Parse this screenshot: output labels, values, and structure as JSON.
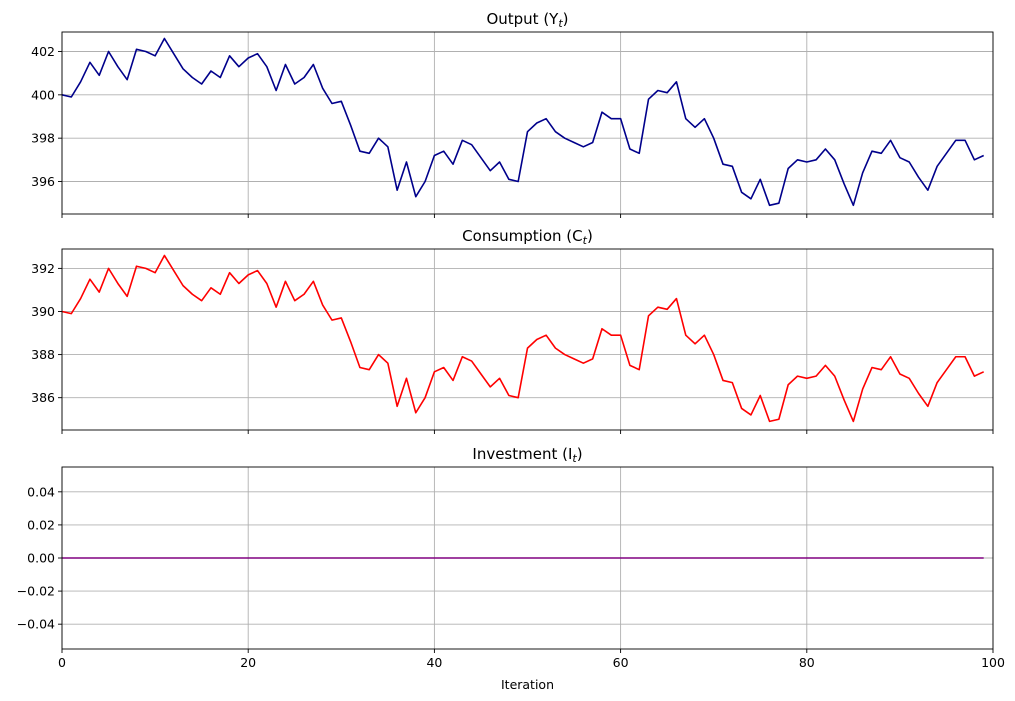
{
  "chart_data": [
    {
      "type": "line",
      "title": "Output (Y",
      "title_sub": "t",
      "xlim": [
        0,
        100
      ],
      "ylim": [
        394.5,
        402.9
      ],
      "xticks": [
        0,
        20,
        40,
        60,
        80,
        100
      ],
      "yticks": [
        396,
        398,
        400,
        402
      ],
      "ytick_decimals": 0,
      "show_xticklabels": false,
      "grid": true,
      "series": [
        {
          "color": "#00008b",
          "x": [
            0,
            1,
            2,
            3,
            4,
            5,
            6,
            7,
            8,
            9,
            10,
            11,
            12,
            13,
            14,
            15,
            16,
            17,
            18,
            19,
            20,
            21,
            22,
            23,
            24,
            25,
            26,
            27,
            28,
            29,
            30,
            31,
            32,
            33,
            34,
            35,
            36,
            37,
            38,
            39,
            40,
            41,
            42,
            43,
            44,
            45,
            46,
            47,
            48,
            49,
            50,
            51,
            52,
            53,
            54,
            55,
            56,
            57,
            58,
            59,
            60,
            61,
            62,
            63,
            64,
            65,
            66,
            67,
            68,
            69,
            70,
            71,
            72,
            73,
            74,
            75,
            76,
            77,
            78,
            79,
            80,
            81,
            82,
            83,
            84,
            85,
            86,
            87,
            88,
            89,
            90,
            91,
            92,
            93,
            94,
            95,
            96,
            97,
            98,
            99
          ],
          "values": [
            400.0,
            399.9,
            400.6,
            401.5,
            400.9,
            402.0,
            401.3,
            400.7,
            402.1,
            402.0,
            401.8,
            402.6,
            401.9,
            401.2,
            400.8,
            400.5,
            401.1,
            400.8,
            401.8,
            401.3,
            401.7,
            401.9,
            401.3,
            400.2,
            401.4,
            400.5,
            400.8,
            401.4,
            400.3,
            399.6,
            399.7,
            398.6,
            397.4,
            397.3,
            398.0,
            397.6,
            395.6,
            396.9,
            395.3,
            396.0,
            397.2,
            397.4,
            396.8,
            397.9,
            397.7,
            397.1,
            396.5,
            396.9,
            396.1,
            396.0,
            398.3,
            398.7,
            398.9,
            398.3,
            398.0,
            397.8,
            397.6,
            397.8,
            399.2,
            398.9,
            398.9,
            397.5,
            397.3,
            399.8,
            400.2,
            400.1,
            400.6,
            398.9,
            398.5,
            398.9,
            398.0,
            396.8,
            396.7,
            395.5,
            395.2,
            396.1,
            394.9,
            395.0,
            396.6,
            397.0,
            396.9,
            397.0,
            397.5,
            397.0,
            395.9,
            394.9,
            396.4,
            397.4,
            397.3,
            397.9,
            397.1,
            396.9,
            396.2,
            395.6,
            396.7,
            397.3,
            397.9,
            397.9,
            397.0,
            397.2
          ]
        }
      ]
    },
    {
      "type": "line",
      "title": "Consumption (C",
      "title_sub": "t",
      "xlim": [
        0,
        100
      ],
      "ylim": [
        384.5,
        392.9
      ],
      "xticks": [
        0,
        20,
        40,
        60,
        80,
        100
      ],
      "yticks": [
        386,
        388,
        390,
        392
      ],
      "ytick_decimals": 0,
      "show_xticklabels": false,
      "grid": true,
      "series": [
        {
          "color": "#ff0000",
          "x": [
            0,
            1,
            2,
            3,
            4,
            5,
            6,
            7,
            8,
            9,
            10,
            11,
            12,
            13,
            14,
            15,
            16,
            17,
            18,
            19,
            20,
            21,
            22,
            23,
            24,
            25,
            26,
            27,
            28,
            29,
            30,
            31,
            32,
            33,
            34,
            35,
            36,
            37,
            38,
            39,
            40,
            41,
            42,
            43,
            44,
            45,
            46,
            47,
            48,
            49,
            50,
            51,
            52,
            53,
            54,
            55,
            56,
            57,
            58,
            59,
            60,
            61,
            62,
            63,
            64,
            65,
            66,
            67,
            68,
            69,
            70,
            71,
            72,
            73,
            74,
            75,
            76,
            77,
            78,
            79,
            80,
            81,
            82,
            83,
            84,
            85,
            86,
            87,
            88,
            89,
            90,
            91,
            92,
            93,
            94,
            95,
            96,
            97,
            98,
            99
          ],
          "values": [
            390.0,
            389.9,
            390.6,
            391.5,
            390.9,
            392.0,
            391.3,
            390.7,
            392.1,
            392.0,
            391.8,
            392.6,
            391.9,
            391.2,
            390.8,
            390.5,
            391.1,
            390.8,
            391.8,
            391.3,
            391.7,
            391.9,
            391.3,
            390.2,
            391.4,
            390.5,
            390.8,
            391.4,
            390.3,
            389.6,
            389.7,
            388.6,
            387.4,
            387.3,
            388.0,
            387.6,
            385.6,
            386.9,
            385.3,
            386.0,
            387.2,
            387.4,
            386.8,
            387.9,
            387.7,
            387.1,
            386.5,
            386.9,
            386.1,
            386.0,
            388.3,
            388.7,
            388.9,
            388.3,
            388.0,
            387.8,
            387.6,
            387.8,
            389.2,
            388.9,
            388.9,
            387.5,
            387.3,
            389.8,
            390.2,
            390.1,
            390.6,
            388.9,
            388.5,
            388.9,
            388.0,
            386.8,
            386.7,
            385.5,
            385.2,
            386.1,
            384.9,
            385.0,
            386.6,
            387.0,
            386.9,
            387.0,
            387.5,
            387.0,
            385.9,
            384.9,
            386.4,
            387.4,
            387.3,
            387.9,
            387.1,
            386.9,
            386.2,
            385.6,
            386.7,
            387.3,
            387.9,
            387.9,
            387.0,
            387.2
          ]
        }
      ]
    },
    {
      "type": "line",
      "title": "Investment (I",
      "title_sub": "t",
      "xlim": [
        0,
        100
      ],
      "ylim": [
        -0.055,
        0.055
      ],
      "xticks": [
        0,
        20,
        40,
        60,
        80,
        100
      ],
      "yticks": [
        -0.04,
        -0.02,
        0.0,
        0.02,
        0.04
      ],
      "ytick_decimals": 2,
      "show_xticklabels": true,
      "xlabel": "Iteration",
      "grid": true,
      "series": [
        {
          "color": "#800080",
          "x": [
            0,
            99
          ],
          "values": [
            0,
            0
          ]
        }
      ]
    }
  ]
}
